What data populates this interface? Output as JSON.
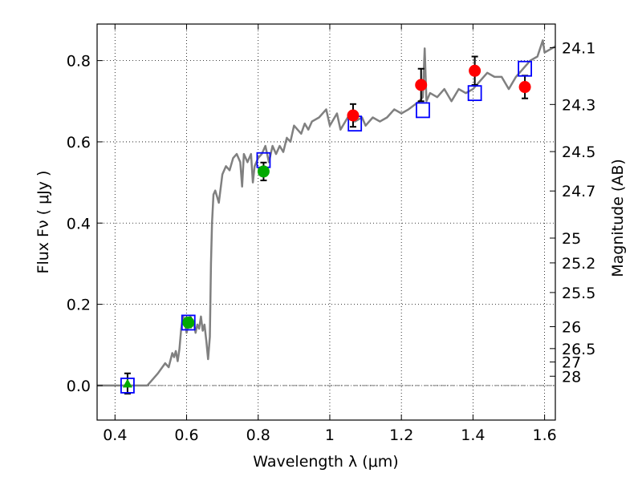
{
  "chart_data": {
    "type": "scatter",
    "xlabel": "Wavelength  λ (μm)",
    "ylabel": "Flux  Fν  ( μJy )",
    "y2label": "Magnitude (AB)",
    "xlim": [
      0.35,
      1.63
    ],
    "ylim": [
      -0.085,
      0.89
    ],
    "grid": true,
    "x_ticks": [
      0.4,
      0.6,
      0.8,
      1.0,
      1.2,
      1.4,
      1.6
    ],
    "x_tick_labels": [
      "0.4",
      "0.6",
      "0.8",
      "1",
      "1.2",
      "1.4",
      "1.6"
    ],
    "y_ticks": [
      0.0,
      0.2,
      0.4,
      0.6,
      0.8
    ],
    "y_tick_labels": [
      "0.0",
      "0.2",
      "0.4",
      "0.6",
      "0.8"
    ],
    "y2_ticks": [
      {
        "label": "24.1",
        "flux": 0.832
      },
      {
        "label": "24.3",
        "flux": 0.692
      },
      {
        "label": "24.5",
        "flux": 0.576
      },
      {
        "label": "24.7",
        "flux": 0.479
      },
      {
        "label": "25",
        "flux": 0.363
      },
      {
        "label": "25.2",
        "flux": 0.302
      },
      {
        "label": "25.5",
        "flux": 0.229
      },
      {
        "label": "26",
        "flux": 0.145
      },
      {
        "label": "26.5",
        "flux": 0.091
      },
      {
        "label": "27",
        "flux": 0.058
      },
      {
        "label": "28",
        "flux": 0.023
      }
    ],
    "zero_line": 0.0,
    "colors": {
      "template": "#808080",
      "model_box": "#0000ff",
      "red_point": "#ff0000",
      "green_point": "#00aa00",
      "error_bar": "#000000"
    },
    "template_spectrum": {
      "x": [
        0.35,
        0.49,
        0.5,
        0.52,
        0.54,
        0.55,
        0.56,
        0.565,
        0.57,
        0.575,
        0.58,
        0.585,
        0.59,
        0.595,
        0.6,
        0.61,
        0.62,
        0.625,
        0.63,
        0.635,
        0.64,
        0.645,
        0.65,
        0.655,
        0.66,
        0.665,
        0.668,
        0.671,
        0.675,
        0.68,
        0.69,
        0.7,
        0.71,
        0.72,
        0.73,
        0.74,
        0.75,
        0.755,
        0.76,
        0.77,
        0.78,
        0.785,
        0.79,
        0.8,
        0.81,
        0.82,
        0.83,
        0.84,
        0.85,
        0.86,
        0.87,
        0.88,
        0.89,
        0.9,
        0.92,
        0.93,
        0.94,
        0.95,
        0.97,
        0.99,
        1.0,
        1.02,
        1.03,
        1.05,
        1.07,
        1.09,
        1.1,
        1.12,
        1.14,
        1.16,
        1.18,
        1.2,
        1.22,
        1.25,
        1.26,
        1.265,
        1.27,
        1.28,
        1.3,
        1.32,
        1.34,
        1.36,
        1.38,
        1.4,
        1.42,
        1.44,
        1.46,
        1.48,
        1.5,
        1.52,
        1.54,
        1.56,
        1.58,
        1.595,
        1.6,
        1.62,
        1.63
      ],
      "y": [
        0.0,
        0.0,
        0.01,
        0.03,
        0.055,
        0.045,
        0.08,
        0.07,
        0.085,
        0.06,
        0.09,
        0.14,
        0.17,
        0.16,
        0.13,
        0.17,
        0.155,
        0.13,
        0.15,
        0.14,
        0.17,
        0.135,
        0.15,
        0.11,
        0.065,
        0.12,
        0.3,
        0.4,
        0.47,
        0.48,
        0.45,
        0.52,
        0.54,
        0.53,
        0.56,
        0.57,
        0.55,
        0.49,
        0.57,
        0.55,
        0.57,
        0.5,
        0.54,
        0.56,
        0.57,
        0.59,
        0.55,
        0.59,
        0.57,
        0.59,
        0.575,
        0.61,
        0.6,
        0.64,
        0.62,
        0.645,
        0.63,
        0.65,
        0.66,
        0.68,
        0.64,
        0.67,
        0.63,
        0.66,
        0.65,
        0.66,
        0.64,
        0.66,
        0.65,
        0.66,
        0.68,
        0.67,
        0.68,
        0.7,
        0.71,
        0.83,
        0.7,
        0.72,
        0.71,
        0.73,
        0.7,
        0.73,
        0.72,
        0.73,
        0.75,
        0.77,
        0.76,
        0.76,
        0.73,
        0.76,
        0.78,
        0.8,
        0.81,
        0.85,
        0.82,
        0.83,
        0.835
      ]
    },
    "model_fluxes": {
      "x": [
        0.435,
        0.605,
        0.815,
        1.07,
        1.26,
        1.405,
        1.545
      ],
      "y": [
        0.0,
        0.155,
        0.555,
        0.645,
        0.678,
        0.72,
        0.78
      ]
    },
    "observed_red": {
      "x": [
        1.065,
        1.255,
        1.405,
        1.545
      ],
      "y": [
        0.665,
        0.74,
        0.775,
        0.735
      ],
      "err": [
        0.028,
        0.04,
        0.035,
        0.028
      ]
    },
    "observed_green": {
      "x": [
        0.605,
        0.815
      ],
      "y": [
        0.155,
        0.527
      ],
      "err": [
        0.012,
        0.022
      ]
    },
    "observed_triangle": {
      "x": [
        0.435
      ],
      "y": [
        0.005
      ],
      "err": [
        0.025
      ]
    }
  }
}
